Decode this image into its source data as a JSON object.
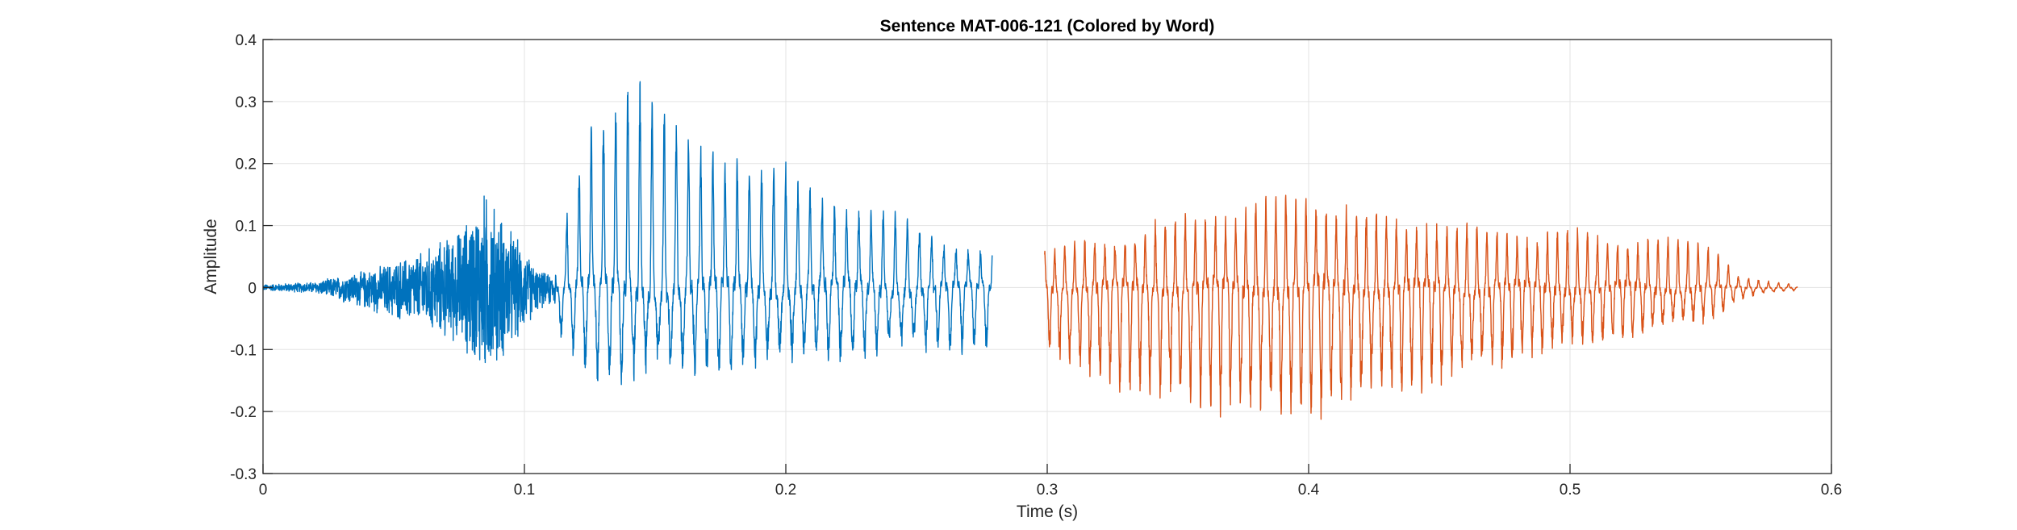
{
  "chart_data": {
    "type": "line",
    "title": "Sentence MAT-006-121 (Colored by Word)",
    "xlabel": "Time (s)",
    "ylabel": "Amplitude",
    "xlim": [
      0,
      0.6
    ],
    "ylim": [
      -0.3,
      0.4
    ],
    "xticks": [
      0,
      0.1,
      0.2,
      0.3,
      0.4,
      0.5,
      0.6
    ],
    "xtick_labels": [
      "0",
      "0.1",
      "0.2",
      "0.3",
      "0.4",
      "0.5",
      "0.6"
    ],
    "yticks": [
      -0.3,
      -0.2,
      -0.1,
      0,
      0.1,
      0.2,
      0.3,
      0.4
    ],
    "ytick_labels": [
      "-0.3",
      "-0.2",
      "-0.1",
      "0",
      "0.1",
      "0.2",
      "0.3",
      "0.4"
    ],
    "grid": true,
    "series": [
      {
        "color": "#0072BD",
        "x_range": [
          0,
          0.279
        ],
        "envelope": {
          "t": [
            0,
            0.02,
            0.04,
            0.06,
            0.075,
            0.085,
            0.095,
            0.105,
            0.111,
            0.115,
            0.125,
            0.14,
            0.15,
            0.165,
            0.185,
            0.2,
            0.22,
            0.24,
            0.26,
            0.279
          ],
          "pos": [
            0.005,
            0.01,
            0.03,
            0.06,
            0.1,
            0.17,
            0.1,
            0.03,
            0.02,
            0.1,
            0.28,
            0.34,
            0.3,
            0.25,
            0.21,
            0.19,
            0.14,
            0.12,
            0.08,
            0.06
          ],
          "neg": [
            -0.005,
            -0.01,
            -0.04,
            -0.07,
            -0.1,
            -0.16,
            -0.11,
            -0.04,
            -0.03,
            -0.1,
            -0.14,
            -0.15,
            -0.15,
            -0.14,
            -0.13,
            -0.13,
            -0.12,
            -0.11,
            -0.1,
            -0.1
          ]
        }
      },
      {
        "color": "#D95319",
        "x_range": [
          0.299,
          0.587
        ],
        "envelope": {
          "t": [
            0.299,
            0.31,
            0.33,
            0.35,
            0.37,
            0.385,
            0.395,
            0.4,
            0.42,
            0.44,
            0.46,
            0.48,
            0.5,
            0.52,
            0.54,
            0.555,
            0.565,
            0.575,
            0.587
          ],
          "pos": [
            0.06,
            0.07,
            0.09,
            0.11,
            0.13,
            0.14,
            0.15,
            0.15,
            0.13,
            0.11,
            0.1,
            0.09,
            0.09,
            0.08,
            0.08,
            0.07,
            0.02,
            0.01,
            0.005
          ],
          "neg": [
            -0.11,
            -0.14,
            -0.17,
            -0.19,
            -0.2,
            -0.21,
            -0.22,
            -0.21,
            -0.19,
            -0.17,
            -0.15,
            -0.12,
            -0.1,
            -0.09,
            -0.07,
            -0.05,
            -0.02,
            -0.01,
            -0.005
          ]
        }
      }
    ]
  }
}
